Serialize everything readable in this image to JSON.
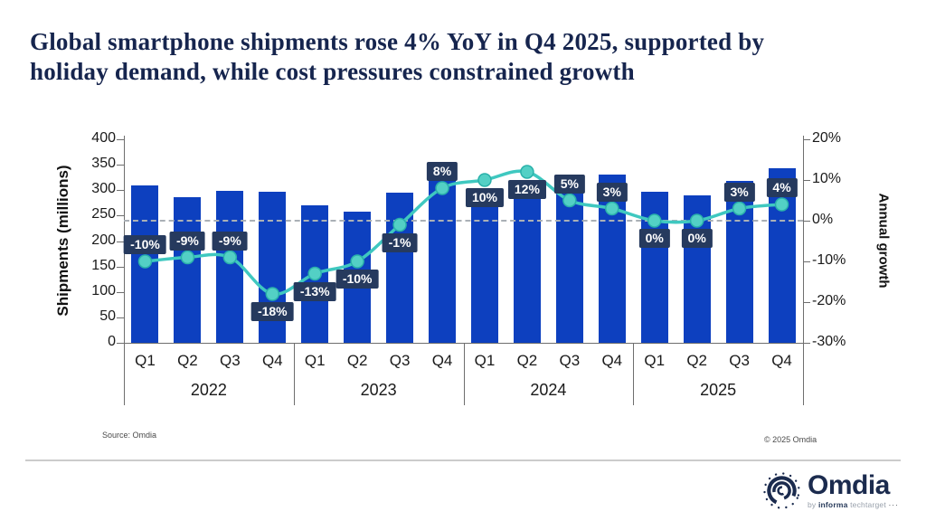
{
  "title_lines": [
    "Global smartphone shipments rose 4% YoY in Q4 2025, supported by",
    "holiday demand, while cost pressures constrained growth"
  ],
  "source_note": "Source: Omdia",
  "copyright": "© 2025 Omdia",
  "logo": {
    "name": "Omdia",
    "byline_by": "by",
    "byline_informa": "informa",
    "byline_techtarget": "techtarget",
    "byline_dots": "···"
  },
  "colors": {
    "bar": "#0d40bf",
    "line": "#3fc8c0",
    "marker": "#53d0c5",
    "marker_stroke": "#2ab1aa",
    "label_bg": "#263a5e",
    "title": "#16254e",
    "logo_navy": "#1b2b4e",
    "zero_dash": "#aab0b6"
  },
  "chart_data": {
    "type": "bar+line combo",
    "categories": [
      "Q1",
      "Q2",
      "Q3",
      "Q4",
      "Q1",
      "Q2",
      "Q3",
      "Q4",
      "Q1",
      "Q2",
      "Q3",
      "Q4",
      "Q1",
      "Q2",
      "Q3",
      "Q4"
    ],
    "year_groups": [
      "2022",
      "2023",
      "2024",
      "2025"
    ],
    "series": [
      {
        "name": "Shipments (millions)",
        "type": "bar",
        "values": [
          310,
          287,
          298,
          297,
          270,
          258,
          295,
          320,
          297,
          289,
          310,
          330,
          297,
          289,
          319,
          343
        ]
      },
      {
        "name": "Annual growth",
        "type": "line",
        "values": [
          -10,
          -9,
          -9,
          -18,
          -13,
          -10,
          -1,
          8,
          10,
          12,
          5,
          3,
          0,
          0,
          3,
          4
        ],
        "labels": [
          "-10%",
          "-9%",
          "-9%",
          "-18%",
          "-13%",
          "-10%",
          "-1%",
          "8%",
          "10%",
          "12%",
          "5%",
          "3%",
          "0%",
          "0%",
          "3%",
          "4%"
        ],
        "label_placement": [
          "above",
          "above",
          "above",
          "below",
          "below",
          "below",
          "below",
          "above",
          "below",
          "below",
          "above",
          "above",
          "below",
          "below",
          "above",
          "above"
        ]
      }
    ],
    "left_axis": {
      "label": "Shipments (millions)",
      "min": 0,
      "max": 400,
      "ticks": [
        400,
        350,
        300,
        250,
        200,
        150,
        100,
        50,
        0
      ]
    },
    "right_axis": {
      "label": "Annual growth",
      "min": -30,
      "max": 20,
      "ticks": [
        "20%",
        "10%",
        "0%",
        "-10%",
        "-20%",
        "-30%"
      ],
      "tick_values": [
        20,
        10,
        0,
        -10,
        -20,
        -30
      ]
    },
    "zero_line": 0,
    "grid": "zero-line-only",
    "legend": "none"
  }
}
